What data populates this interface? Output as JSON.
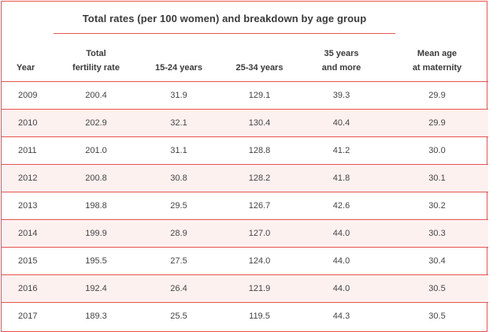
{
  "title": "Total rates (per 100 women) and breakdown by age group",
  "headers": [
    {
      "line1": "",
      "line2": "Year"
    },
    {
      "line1": "Total",
      "line2": "fertility rate"
    },
    {
      "line1": "",
      "line2": "15-24 years"
    },
    {
      "line1": "",
      "line2": "25-34 years"
    },
    {
      "line1": "35 years",
      "line2": "and more"
    },
    {
      "line1": "Mean age",
      "line2": "at maternity"
    }
  ],
  "rows": [
    [
      "2009",
      "200.4",
      "31.9",
      "129.1",
      "39.3",
      "29.9"
    ],
    [
      "2010",
      "202.9",
      "32.1",
      "130.4",
      "40.4",
      "29.9"
    ],
    [
      "2011",
      "201.0",
      "31.1",
      "128.8",
      "41.2",
      "30.0"
    ],
    [
      "2012",
      "200.8",
      "30.8",
      "128.2",
      "41.8",
      "30.1"
    ],
    [
      "2013",
      "198.8",
      "29.5",
      "126.7",
      "42.6",
      "30.2"
    ],
    [
      "2014",
      "199.9",
      "28.9",
      "127.0",
      "44.0",
      "30.3"
    ],
    [
      "2015",
      "195.5",
      "27.5",
      "124.0",
      "44.0",
      "30.4"
    ],
    [
      "2016",
      "192.4",
      "26.4",
      "121.9",
      "44.0",
      "30.5"
    ],
    [
      "2017",
      "189.3",
      "25.5",
      "119.5",
      "44.3",
      "30.5"
    ]
  ],
  "colors": {
    "accent": "#e8534e",
    "stripe": "#fdf1f0",
    "text": "#3a3a3a"
  }
}
